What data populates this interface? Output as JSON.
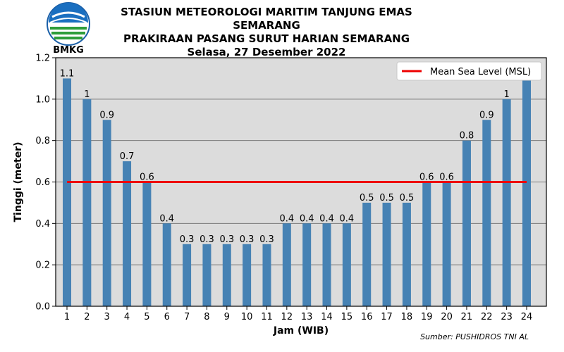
{
  "header": {
    "logo_label": "BMKG",
    "title_line1": "STASIUN METEOROLOGI MARITIM TANJUNG EMAS SEMARANG",
    "title_line2": "PRAKIRAAN PASANG SURUT HARIAN SEMARANG",
    "title_line3": "Selasa, 27 Desember 2022"
  },
  "source": "Sumber: PUSHIDROS TNI AL",
  "chart_data": {
    "type": "bar",
    "xlabel": "Jam (WIB)",
    "ylabel": "Tinggi (meter)",
    "ylim": [
      0,
      1.2
    ],
    "yticks": [
      "0.0",
      "0.2",
      "0.4",
      "0.6",
      "0.8",
      "1.0",
      "1.2"
    ],
    "categories": [
      "1",
      "2",
      "3",
      "4",
      "5",
      "6",
      "7",
      "8",
      "9",
      "10",
      "11",
      "12",
      "13",
      "14",
      "15",
      "16",
      "17",
      "18",
      "19",
      "20",
      "21",
      "22",
      "23",
      "24"
    ],
    "values": [
      1.1,
      1.0,
      0.9,
      0.7,
      0.6,
      0.4,
      0.3,
      0.3,
      0.3,
      0.3,
      0.3,
      0.4,
      0.4,
      0.4,
      0.4,
      0.5,
      0.5,
      0.5,
      0.6,
      0.6,
      0.8,
      0.9,
      1.0,
      1.1
    ],
    "value_labels": [
      "1.1",
      "1",
      "0.9",
      "0.7",
      "0.6",
      "0.4",
      "0.3",
      "0.3",
      "0.3",
      "0.3",
      "0.3",
      "0.4",
      "0.4",
      "0.4",
      "0.4",
      "0.5",
      "0.5",
      "0.5",
      "0.6",
      "0.6",
      "0.8",
      "0.9",
      "1",
      ""
    ],
    "reference_line": {
      "name": "Mean Sea Level (MSL)",
      "value": 0.6,
      "color": "#ee0000"
    },
    "bar_color": "#4682b4",
    "background": "#dcdcdc",
    "grid": true,
    "legend_position": "top-right"
  }
}
